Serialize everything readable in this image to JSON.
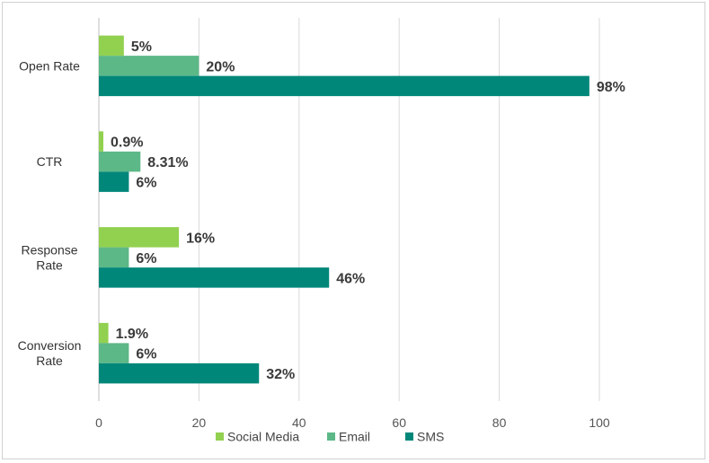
{
  "chart_data": {
    "type": "bar",
    "orientation": "horizontal",
    "categories": [
      [
        "Open Rate"
      ],
      [
        "CTR"
      ],
      [
        "Response",
        "Rate"
      ],
      [
        "Conversion",
        "Rate"
      ]
    ],
    "series": [
      {
        "name": "Social Media",
        "color": "#92d050",
        "values": [
          5,
          0.9,
          16,
          1.9
        ],
        "labels": [
          "5%",
          "0.9%",
          "16%",
          "1.9%"
        ]
      },
      {
        "name": "Email",
        "color": "#5cb887",
        "values": [
          20,
          8.31,
          6,
          6
        ],
        "labels": [
          "20%",
          "8.31%",
          "6%",
          "6%"
        ]
      },
      {
        "name": "SMS",
        "color": "#00877a",
        "values": [
          98,
          6,
          46,
          32
        ],
        "labels": [
          "98%",
          "6%",
          "46%",
          "32%"
        ]
      }
    ],
    "xlim": [
      0,
      100
    ],
    "xticks": [
      0,
      20,
      40,
      60,
      80,
      100
    ],
    "title": "",
    "xlabel": "",
    "ylabel": "",
    "grid": true,
    "legend_position": "bottom"
  }
}
